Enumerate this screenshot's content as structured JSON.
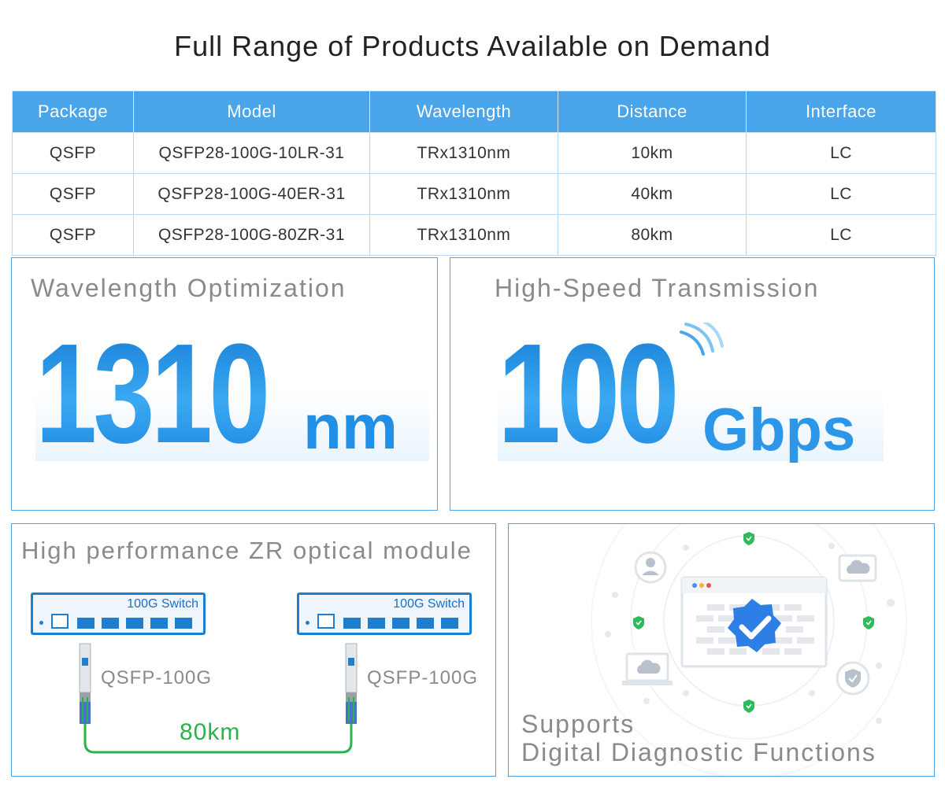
{
  "title": "Full Range of Products Available on Demand",
  "table": {
    "headers": [
      "Package",
      "Model",
      "Wavelength",
      "Distance",
      "Interface"
    ],
    "rows": [
      [
        "QSFP",
        "QSFP28-100G-10LR-31",
        "TRx1310nm",
        "10km",
        "LC"
      ],
      [
        "QSFP",
        "QSFP28-100G-40ER-31",
        "TRx1310nm",
        "40km",
        "LC"
      ],
      [
        "QSFP",
        "QSFP28-100G-80ZR-31",
        "TRx1310nm",
        "80km",
        "LC"
      ]
    ]
  },
  "wavelength_panel": {
    "title": "Wavelength Optimization",
    "value": "1310",
    "unit": "nm"
  },
  "speed_panel": {
    "title": "High-Speed Transmission",
    "value": "100",
    "unit": "Gbps"
  },
  "zr_panel": {
    "title": "High performance ZR optical module",
    "switch_left_label": "100G Switch",
    "switch_right_label": "100G Switch",
    "module_left_label": "QSFP-100G",
    "module_right_label": "QSFP-100G",
    "distance": "80km"
  },
  "diag_panel": {
    "line1": "Supports",
    "line2": "Digital Diagnostic Functions"
  },
  "colors": {
    "accent": "#4aa5ea",
    "number_blue": "#1e8ee6",
    "fiber_green": "#29b34a",
    "shield_green": "#2dbb5c"
  },
  "icons": [
    "ethernet-port-icon",
    "sfp-port-icon",
    "wifi-signal-icon",
    "user-icon",
    "cloud-icon",
    "laptop-icon",
    "shield-check-icon",
    "verified-badge-icon"
  ]
}
